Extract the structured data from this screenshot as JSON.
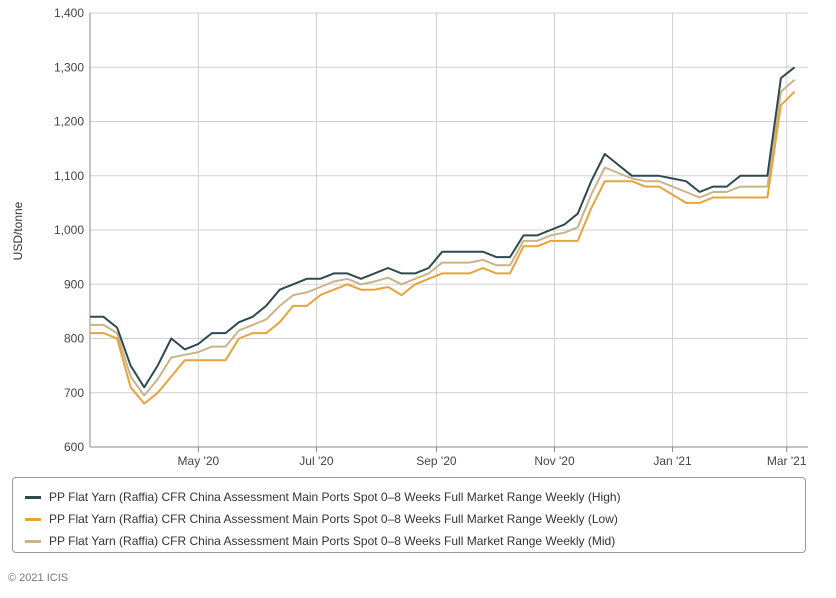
{
  "chart_data": {
    "type": "line",
    "ylabel": "USD/tonne",
    "xlabel": "",
    "title": "",
    "ylim": [
      600,
      1400
    ],
    "yticks": [
      600,
      700,
      800,
      900,
      1000,
      1100,
      1200,
      1300,
      1400
    ],
    "ytick_labels": [
      "600",
      "700",
      "800",
      "900",
      "1,000",
      "1,100",
      "1,200",
      "1,300",
      "1,400"
    ],
    "xlim": [
      "2020-03-06",
      "2021-03-12"
    ],
    "xticks": [
      {
        "date": "2020-05-01",
        "label": "May '20"
      },
      {
        "date": "2020-07-01",
        "label": "Jul '20"
      },
      {
        "date": "2020-09-01",
        "label": "Sep '20"
      },
      {
        "date": "2020-11-01",
        "label": "Nov '20"
      },
      {
        "date": "2021-01-01",
        "label": "Jan '21"
      },
      {
        "date": "2021-03-01",
        "label": "Mar '21"
      }
    ],
    "grid": true,
    "legend_position": "bottom",
    "x": [
      "2020-03-06",
      "2020-03-13",
      "2020-03-20",
      "2020-03-27",
      "2020-04-03",
      "2020-04-10",
      "2020-04-17",
      "2020-04-24",
      "2020-05-01",
      "2020-05-08",
      "2020-05-15",
      "2020-05-22",
      "2020-05-29",
      "2020-06-05",
      "2020-06-12",
      "2020-06-19",
      "2020-06-26",
      "2020-07-03",
      "2020-07-10",
      "2020-07-17",
      "2020-07-24",
      "2020-07-31",
      "2020-08-07",
      "2020-08-14",
      "2020-08-21",
      "2020-08-28",
      "2020-09-04",
      "2020-09-11",
      "2020-09-18",
      "2020-09-25",
      "2020-10-02",
      "2020-10-09",
      "2020-10-16",
      "2020-10-23",
      "2020-10-30",
      "2020-11-06",
      "2020-11-13",
      "2020-11-20",
      "2020-11-27",
      "2020-12-04",
      "2020-12-11",
      "2020-12-18",
      "2020-12-25",
      "2021-01-01",
      "2021-01-08",
      "2021-01-15",
      "2021-01-22",
      "2021-01-29",
      "2021-02-05",
      "2021-02-12",
      "2021-02-19",
      "2021-02-26",
      "2021-03-05"
    ],
    "series": [
      {
        "name": "PP Flat Yarn (Raffia) CFR China Assessment Main Ports Spot 0-8 Weeks Full Market Range Weekly (High)",
        "color": "#2e4a4f",
        "values": [
          840,
          840,
          820,
          750,
          710,
          750,
          800,
          780,
          790,
          810,
          810,
          830,
          840,
          860,
          890,
          900,
          910,
          910,
          920,
          920,
          910,
          920,
          930,
          920,
          920,
          930,
          960,
          960,
          960,
          960,
          950,
          950,
          990,
          990,
          1000,
          1010,
          1030,
          1090,
          1140,
          1120,
          1100,
          1100,
          1100,
          1095,
          1090,
          1070,
          1080,
          1080,
          1100,
          1100,
          1100,
          1280,
          1300
        ]
      },
      {
        "name": "PP Flat Yarn (Raffia) CFR China Assessment Main Ports Spot 0-8 Weeks Full Market Range Weekly (Low)",
        "color": "#e8a33a",
        "values": [
          810,
          810,
          800,
          710,
          680,
          700,
          730,
          760,
          760,
          760,
          760,
          800,
          810,
          810,
          830,
          860,
          860,
          880,
          890,
          900,
          890,
          890,
          895,
          880,
          900,
          910,
          920,
          920,
          920,
          930,
          920,
          920,
          970,
          970,
          980,
          980,
          980,
          1040,
          1090,
          1090,
          1090,
          1080,
          1080,
          1065,
          1050,
          1050,
          1060,
          1060,
          1060,
          1060,
          1060,
          1230,
          1255
        ]
      },
      {
        "name": "PP Flat Yarn (Raffia) CFR China Assessment Main Ports Spot 0-8 Weeks Full Market Range Weekly (Mid)",
        "color": "#c9b48a",
        "values": [
          825,
          825,
          810,
          730,
          695,
          725,
          765,
          770,
          775,
          785,
          785,
          815,
          825,
          835,
          860,
          880,
          885,
          895,
          905,
          910,
          900,
          905,
          912,
          900,
          910,
          920,
          940,
          940,
          940,
          945,
          935,
          935,
          980,
          980,
          990,
          995,
          1005,
          1065,
          1115,
          1105,
          1095,
          1090,
          1090,
          1080,
          1070,
          1060,
          1070,
          1070,
          1080,
          1080,
          1080,
          1255,
          1277
        ]
      }
    ]
  },
  "legend": {
    "items": [
      {
        "label": "PP Flat Yarn (Raffia) CFR China Assessment Main Ports Spot 0–8 Weeks Full Market Range Weekly (High)",
        "color": "#2e4a4f"
      },
      {
        "label": "PP Flat Yarn (Raffia) CFR China Assessment Main Ports Spot 0–8 Weeks Full Market Range Weekly (Low)",
        "color": "#e8a33a"
      },
      {
        "label": "PP Flat Yarn (Raffia) CFR China Assessment Main Ports Spot 0–8 Weeks Full Market Range Weekly (Mid)",
        "color": "#c9b48a"
      }
    ]
  },
  "credit": "© 2021 ICIS"
}
